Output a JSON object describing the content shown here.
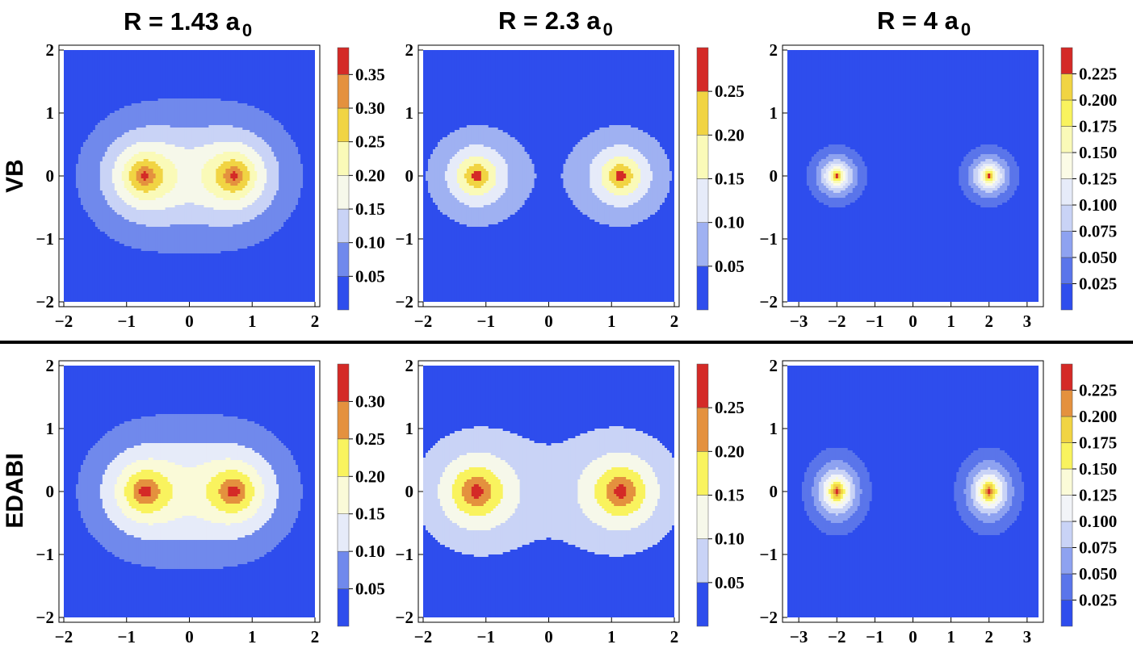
{
  "column_titles": [
    {
      "main": "R = 1.43 a",
      "sub": "0"
    },
    {
      "main": "R = 2.3 a",
      "sub": "0"
    },
    {
      "main": "R = 4 a",
      "sub": "0"
    }
  ],
  "row_labels": [
    "VB",
    "EDABI"
  ],
  "colors": {
    "background_level": "#2e4ded",
    "divider": "#000000",
    "contour_line": "#333333",
    "red": "#d42a27",
    "orange": "#e4913e",
    "yellow": "#f1d443",
    "bright_yellow": "#f9f35e",
    "light_yellow": "#fafab8",
    "cream": "#f6f8ea",
    "pale_blue": "#e6ebf9",
    "light_blue": "#c9d3f6",
    "mid_blue": "#9fb1f2",
    "blue": "#7089ec"
  },
  "chart_data": [
    {
      "type": "contour",
      "row": "VB",
      "R": 1.43,
      "xlim": [
        -2,
        2
      ],
      "ylim": [
        -2,
        2
      ],
      "xticks": [
        "−2",
        "−1",
        "0",
        "1",
        "2"
      ],
      "yticks": [
        "2",
        "1",
        "0",
        "−1",
        "−2"
      ],
      "nuclei_x": [
        -0.715,
        0.715
      ],
      "colorbar": {
        "max": 0.39,
        "ticks": [
          "0.05",
          "0.10",
          "0.15",
          "0.20",
          "0.25",
          "0.30",
          "0.35"
        ],
        "tick_values": [
          0.05,
          0.1,
          0.15,
          0.2,
          0.25,
          0.3,
          0.35
        ]
      },
      "levels": [
        {
          "from": 0.0,
          "to": 0.05,
          "color": "#2e4ded"
        },
        {
          "from": 0.05,
          "to": 0.1,
          "color": "#7089ec"
        },
        {
          "from": 0.1,
          "to": 0.15,
          "color": "#c9d3f6"
        },
        {
          "from": 0.15,
          "to": 0.2,
          "color": "#f6f8ea"
        },
        {
          "from": 0.2,
          "to": 0.25,
          "color": "#fafab8"
        },
        {
          "from": 0.25,
          "to": 0.3,
          "color": "#f1d443"
        },
        {
          "from": 0.3,
          "to": 0.35,
          "color": "#e4913e"
        },
        {
          "from": 0.35,
          "to": 0.39,
          "color": "#d42a27"
        }
      ]
    },
    {
      "type": "contour",
      "row": "VB",
      "R": 2.3,
      "xlim": [
        -2,
        2
      ],
      "ylim": [
        -2,
        2
      ],
      "xticks": [
        "−2",
        "−1",
        "0",
        "1",
        "2"
      ],
      "yticks": [
        "2",
        "1",
        "0",
        "−1",
        "−2"
      ],
      "nuclei_x": [
        -1.15,
        1.15
      ],
      "colorbar": {
        "max": 0.3,
        "ticks": [
          "0.05",
          "0.10",
          "0.15",
          "0.20",
          "0.25"
        ],
        "tick_values": [
          0.05,
          0.1,
          0.15,
          0.2,
          0.25
        ]
      },
      "levels": [
        {
          "from": 0.0,
          "to": 0.05,
          "color": "#2e4ded"
        },
        {
          "from": 0.05,
          "to": 0.1,
          "color": "#9fb1f2"
        },
        {
          "from": 0.1,
          "to": 0.15,
          "color": "#e6ebf9"
        },
        {
          "from": 0.15,
          "to": 0.2,
          "color": "#fafab8"
        },
        {
          "from": 0.2,
          "to": 0.25,
          "color": "#f1d443"
        },
        {
          "from": 0.25,
          "to": 0.3,
          "color": "#d42a27"
        }
      ]
    },
    {
      "type": "contour",
      "row": "VB",
      "R": 4,
      "xlim": [
        -3.3,
        3.3
      ],
      "ylim": [
        -2,
        2
      ],
      "xticks": [
        "−3",
        "−2",
        "−1",
        "0",
        "1",
        "2",
        "3"
      ],
      "yticks": [
        "2",
        "1",
        "0",
        "−1",
        "−2"
      ],
      "nuclei_x": [
        -2.0,
        2.0
      ],
      "colorbar": {
        "max": 0.25,
        "ticks": [
          "0.025",
          "0.050",
          "0.075",
          "0.100",
          "0.125",
          "0.150",
          "0.175",
          "0.200",
          "0.225"
        ],
        "tick_values": [
          0.025,
          0.05,
          0.075,
          0.1,
          0.125,
          0.15,
          0.175,
          0.2,
          0.225
        ]
      },
      "levels": [
        {
          "from": 0.0,
          "to": 0.025,
          "color": "#2e4ded"
        },
        {
          "from": 0.025,
          "to": 0.05,
          "color": "#5a75ea"
        },
        {
          "from": 0.05,
          "to": 0.075,
          "color": "#8ea2f0"
        },
        {
          "from": 0.075,
          "to": 0.1,
          "color": "#c9d3f6"
        },
        {
          "from": 0.1,
          "to": 0.125,
          "color": "#e6ebf9"
        },
        {
          "from": 0.125,
          "to": 0.15,
          "color": "#fbfbe6"
        },
        {
          "from": 0.15,
          "to": 0.175,
          "color": "#fafab8"
        },
        {
          "from": 0.175,
          "to": 0.2,
          "color": "#f9f35e"
        },
        {
          "from": 0.2,
          "to": 0.225,
          "color": "#f1d443"
        },
        {
          "from": 0.225,
          "to": 0.25,
          "color": "#d42a27"
        }
      ]
    },
    {
      "type": "contour",
      "row": "EDABI",
      "R": 1.43,
      "xlim": [
        -2,
        2
      ],
      "ylim": [
        -2,
        2
      ],
      "xticks": [
        "−2",
        "−1",
        "0",
        "1",
        "2"
      ],
      "yticks": [
        "2",
        "1",
        "0",
        "−1",
        "−2"
      ],
      "nuclei_x": [
        -0.715,
        0.715
      ],
      "colorbar": {
        "max": 0.35,
        "ticks": [
          "0.05",
          "0.10",
          "0.15",
          "0.20",
          "0.25",
          "0.30"
        ],
        "tick_values": [
          0.05,
          0.1,
          0.15,
          0.2,
          0.25,
          0.3
        ]
      },
      "levels": [
        {
          "from": 0.0,
          "to": 0.05,
          "color": "#2e4ded"
        },
        {
          "from": 0.05,
          "to": 0.1,
          "color": "#7089ec"
        },
        {
          "from": 0.1,
          "to": 0.15,
          "color": "#e6ebf9"
        },
        {
          "from": 0.15,
          "to": 0.2,
          "color": "#fafad8"
        },
        {
          "from": 0.2,
          "to": 0.25,
          "color": "#f9f35e"
        },
        {
          "from": 0.25,
          "to": 0.3,
          "color": "#e4913e"
        },
        {
          "from": 0.3,
          "to": 0.35,
          "color": "#d42a27"
        }
      ]
    },
    {
      "type": "contour",
      "row": "EDABI",
      "R": 2.3,
      "xlim": [
        -2,
        2
      ],
      "ylim": [
        -2,
        2
      ],
      "xticks": [
        "−2",
        "−1",
        "0",
        "1",
        "2"
      ],
      "yticks": [
        "2",
        "1",
        "0",
        "−1",
        "−2"
      ],
      "nuclei_x": [
        -1.15,
        1.15
      ],
      "colorbar": {
        "max": 0.3,
        "ticks": [
          "0.05",
          "0.10",
          "0.15",
          "0.20",
          "0.25"
        ],
        "tick_values": [
          0.05,
          0.1,
          0.15,
          0.2,
          0.25
        ]
      },
      "levels": [
        {
          "from": 0.0,
          "to": 0.05,
          "color": "#2e4ded"
        },
        {
          "from": 0.05,
          "to": 0.1,
          "color": "#c9d3f6"
        },
        {
          "from": 0.1,
          "to": 0.15,
          "color": "#f6f8ea"
        },
        {
          "from": 0.15,
          "to": 0.2,
          "color": "#f9f35e"
        },
        {
          "from": 0.2,
          "to": 0.25,
          "color": "#e4913e"
        },
        {
          "from": 0.25,
          "to": 0.3,
          "color": "#d42a27"
        }
      ]
    },
    {
      "type": "contour",
      "row": "EDABI",
      "R": 4,
      "xlim": [
        -3.3,
        3.3
      ],
      "ylim": [
        -2,
        2
      ],
      "xticks": [
        "−3",
        "−2",
        "−1",
        "0",
        "1",
        "2",
        "3"
      ],
      "yticks": [
        "2",
        "1",
        "0",
        "−1",
        "−2"
      ],
      "nuclei_x": [
        -2.0,
        2.0
      ],
      "colorbar": {
        "max": 0.25,
        "ticks": [
          "0.025",
          "0.050",
          "0.075",
          "0.100",
          "0.125",
          "0.150",
          "0.175",
          "0.200",
          "0.225"
        ],
        "tick_values": [
          0.025,
          0.05,
          0.075,
          0.1,
          0.125,
          0.15,
          0.175,
          0.2,
          0.225
        ]
      },
      "levels": [
        {
          "from": 0.0,
          "to": 0.025,
          "color": "#2e4ded"
        },
        {
          "from": 0.025,
          "to": 0.05,
          "color": "#5a75ea"
        },
        {
          "from": 0.05,
          "to": 0.075,
          "color": "#8ea2f0"
        },
        {
          "from": 0.075,
          "to": 0.1,
          "color": "#c9d3f6"
        },
        {
          "from": 0.1,
          "to": 0.125,
          "color": "#f2f4f8"
        },
        {
          "from": 0.125,
          "to": 0.15,
          "color": "#fbfbd8"
        },
        {
          "from": 0.15,
          "to": 0.175,
          "color": "#f9f35e"
        },
        {
          "from": 0.175,
          "to": 0.2,
          "color": "#f1d443"
        },
        {
          "from": 0.2,
          "to": 0.225,
          "color": "#e4913e"
        },
        {
          "from": 0.225,
          "to": 0.25,
          "color": "#d42a27"
        }
      ]
    }
  ]
}
